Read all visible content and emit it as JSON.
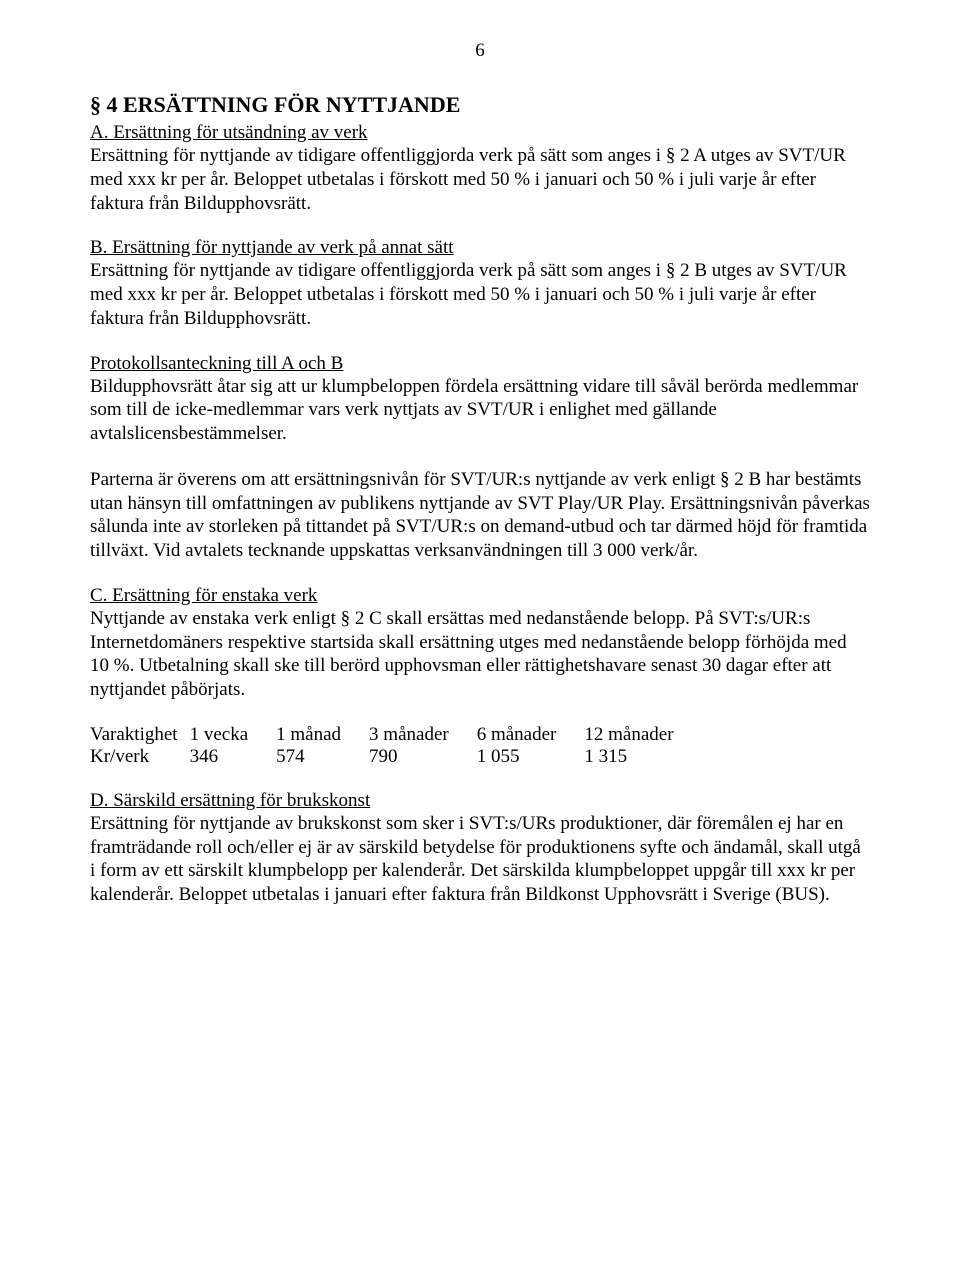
{
  "page_number": "6",
  "section_heading": "§ 4 ERSÄTTNING FÖR NYTTJANDE",
  "A": {
    "heading": "A. Ersättning för utsändning av verk",
    "body": "Ersättning för nyttjande av tidigare offentliggjorda verk på sätt som anges i § 2 A utges av SVT/UR med xxx kr per år. Beloppet utbetalas i förskott med 50 % i januari och 50 % i juli varje år efter faktura från Bildupphovsrätt."
  },
  "B": {
    "heading": "B. Ersättning för nyttjande av verk på annat sätt",
    "body": "Ersättning för nyttjande av tidigare offentliggjorda verk på sätt som anges i § 2 B utges av SVT/UR med xxx kr per år. Beloppet utbetalas i förskott med 50 % i januari och 50 % i juli varje år efter faktura från Bildupphovsrätt."
  },
  "protokoll": {
    "heading": "Protokollsanteckning till A och B",
    "body": "Bildupphovsrätt åtar sig att ur klumpbeloppen fördela ersättning vidare till såväl berörda medlemmar som till de icke-medlemmar vars verk nyttjats av SVT/UR i enlighet med gällande avtalslicensbestämmelser."
  },
  "parterna": "Parterna är överens om att ersättningsnivån för SVT/UR:s nyttjande av verk enligt § 2 B har bestämts utan hänsyn till omfattningen av publikens nyttjande av SVT Play/UR Play. Ersättningsnivån påverkas sålunda inte av storleken på tittandet på SVT/UR:s on demand-utbud och tar därmed höjd för framtida tillväxt. Vid avtalets tecknande uppskattas verksanvändningen till 3 000 verk/år.",
  "C": {
    "heading": "C. Ersättning för enstaka verk",
    "body": "Nyttjande av enstaka verk enligt § 2 C skall ersättas med nedanstående belopp. På SVT:s/UR:s Internetdomäners respektive startsida skall ersättning utges med nedanstående belopp förhöjda med 10 %. Utbetalning skall ske till berörd upphovsman eller rättighetshavare senast 30 dagar efter att nyttjandet påbörjats."
  },
  "table": {
    "row1": [
      "Varaktighet",
      "1 vecka",
      "1 månad",
      "3 månader",
      "6 månader",
      "12 månader"
    ],
    "row2": [
      "Kr/verk",
      "346",
      "574",
      "790",
      "1 055",
      "1 315"
    ]
  },
  "D": {
    "heading": "D. Särskild ersättning för brukskonst",
    "body": "Ersättning för nyttjande av brukskonst som sker i SVT:s/URs produktioner, där föremålen ej har en framträdande roll och/eller ej är av särskild betydelse för produktionens syfte och ändamål, skall utgå i form av ett särskilt klumpbelopp per kalenderår. Det särskilda klumpbeloppet uppgår till xxx kr per kalenderår. Beloppet utbetalas i januari efter faktura från Bildkonst Upphovsrätt i Sverige (BUS)."
  }
}
